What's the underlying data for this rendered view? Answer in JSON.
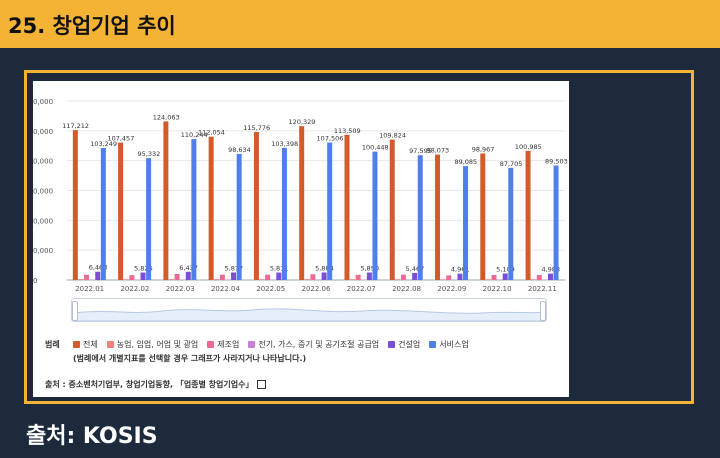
{
  "header": {
    "title": "25. 창업기업 추이"
  },
  "chart_data": {
    "type": "bar",
    "y_tick_labels": [
      "0",
      "0,000",
      "0,000",
      "0,000",
      "0,000",
      "0,000",
      "0,000"
    ],
    "ylim": [
      0,
      140000
    ],
    "categories": [
      "2022.01",
      "2022.02",
      "2022.03",
      "2022.04",
      "2022.05",
      "2022.06",
      "2022.07",
      "2022.08",
      "2022.09",
      "2022.10",
      "2022.11"
    ],
    "series": [
      {
        "name": "전체",
        "color": "#d35a2b",
        "values": [
          117212,
          107457,
          124063,
          112054,
          115776,
          120329,
          113509,
          109824,
          98073,
          98967,
          100985
        ],
        "labels": [
          "117,212",
          "107,457",
          "124,063",
          "112,054",
          "115,776",
          "120,329",
          "113,509",
          "109,824",
          "98,073",
          "98,967",
          "100,985"
        ]
      },
      {
        "name": "농업, 임업, 어업 및 광업",
        "color": "#f08080",
        "values": [
          700,
          600,
          680,
          650,
          660,
          690,
          640,
          620,
          560,
          570,
          580
        ],
        "labels": []
      },
      {
        "name": "제조업",
        "color": "#ee6a96",
        "values": [
          4100,
          3800,
          4700,
          4200,
          4200,
          4500,
          4100,
          4200,
          3600,
          3900,
          3900
        ],
        "labels": []
      },
      {
        "name": "전기, 가스, 증기 및 공기조절 공급업",
        "color": "#c980d8",
        "values": [
          300,
          280,
          350,
          320,
          330,
          300,
          290,
          300,
          250,
          260,
          270
        ],
        "labels": []
      },
      {
        "name": "건설업",
        "color": "#7a4fd6",
        "values": [
          6463,
          5826,
          6437,
          5877,
          5811,
          5884,
          5850,
          5467,
          4961,
          5109,
          4988
        ],
        "labels": [
          "6,463",
          "5,826",
          "6,437",
          "5,877",
          "5,811",
          "5,884",
          "5,850",
          "5,467",
          "4,961",
          "5,109",
          "4,988"
        ]
      },
      {
        "name": "서비스업",
        "color": "#4f7fe8",
        "values": [
          103249,
          95332,
          110244,
          98634,
          103398,
          107506,
          100448,
          97595,
          89085,
          87705,
          89503
        ],
        "labels": [
          "103,249",
          "95,332",
          "110,244",
          "98,634",
          "103,398",
          "107,506",
          "100,448",
          "97,595",
          "89,085",
          "87,705",
          "89,503"
        ]
      }
    ]
  },
  "legend": {
    "title": "범례",
    "items": [
      {
        "label": "전체",
        "color": "#d35a2b"
      },
      {
        "label": "농업, 임업, 어업 및 광업",
        "color": "#f08080"
      },
      {
        "label": "제조업",
        "color": "#ee6a96"
      },
      {
        "label": "전기, 가스, 증기 및 공기조절 공급업",
        "color": "#c980d8"
      },
      {
        "label": "건설업",
        "color": "#7a4fd6"
      },
      {
        "label": "서비스업",
        "color": "#4f7fe8"
      }
    ],
    "note": "(범례에서 개별지표를 선택할 경우 그래프가 사라지거나 나타납니다.)"
  },
  "source": "출처 : 중소벤처기업부, 창업기업동향, 「업종별 창업기업수」",
  "caption": "출처: KOSIS"
}
